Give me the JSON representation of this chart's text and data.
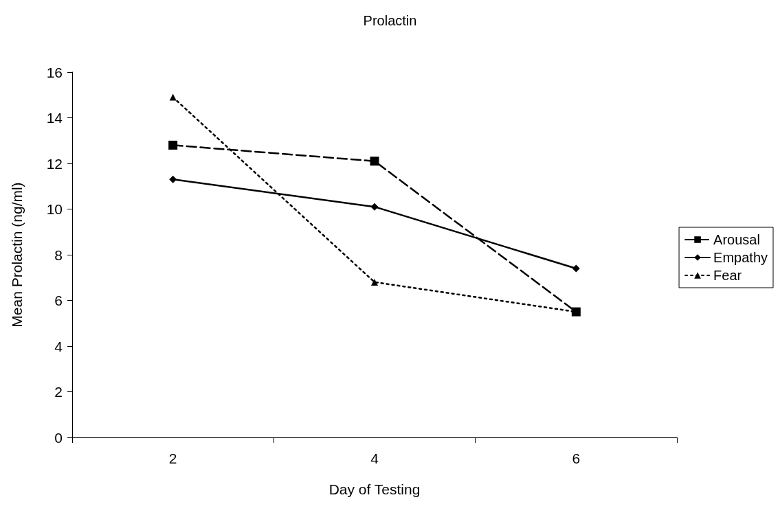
{
  "chart_data": {
    "type": "line",
    "title": "Prolactin",
    "xlabel": "Day of Testing",
    "ylabel": "Mean Prolactin (ng/ml)",
    "categories": [
      "2",
      "4",
      "6"
    ],
    "series": [
      {
        "name": "Arousal",
        "color": "#000000",
        "values": [
          12.8,
          12.1,
          5.5
        ],
        "marker": "square",
        "line_style": "dashed"
      },
      {
        "name": "Empathy",
        "color": "#000000",
        "values": [
          11.3,
          10.1,
          7.4
        ],
        "marker": "diamond",
        "line_style": "solid"
      },
      {
        "name": "Fear",
        "color": "#000000",
        "values": [
          14.9,
          6.8,
          5.5
        ],
        "marker": "triangle",
        "line_style": "dotted"
      }
    ],
    "ylim": [
      0,
      16
    ],
    "yticks": [
      0,
      2,
      4,
      6,
      8,
      10,
      12,
      14,
      16
    ],
    "grid": false,
    "legend": "right"
  }
}
